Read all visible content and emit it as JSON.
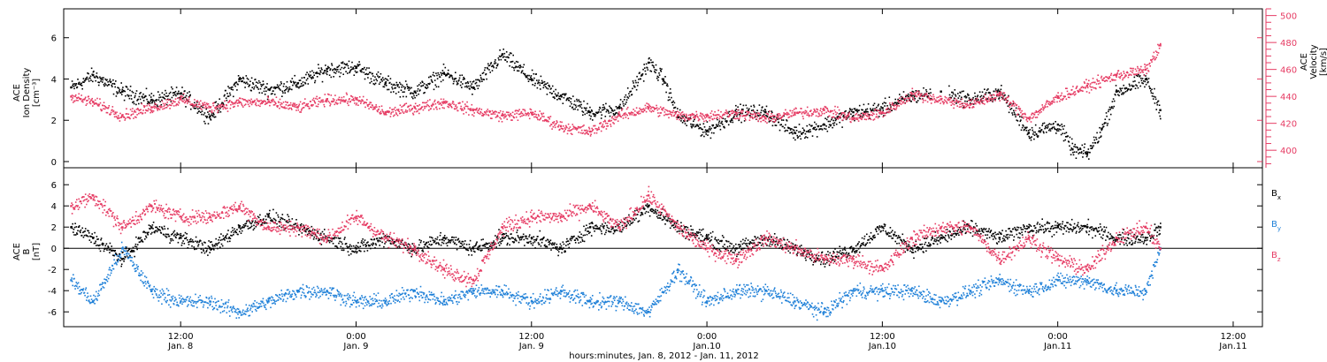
{
  "chart_data": {
    "type": "scatter",
    "xlabel": "hours:minutes, Jan.  8, 2012 - Jan. 11, 2012",
    "x_ticks": [
      {
        "t": 12,
        "time": "12:00",
        "date": "Jan. 8"
      },
      {
        "t": 24,
        "time": "0:00",
        "date": "Jan. 9"
      },
      {
        "t": 36,
        "time": "12:00",
        "date": "Jan. 9"
      },
      {
        "t": 48,
        "time": "0:00",
        "date": "Jan.10"
      },
      {
        "t": 60,
        "time": "12:00",
        "date": "Jan.10"
      },
      {
        "t": 72,
        "time": "0:00",
        "date": "Jan.11"
      },
      {
        "t": 84,
        "time": "12:00",
        "date": "Jan.11"
      }
    ],
    "xlim_hours": [
      4,
      86
    ],
    "panels": [
      {
        "id": "density-velocity",
        "ylabel_lines": [
          "ACE",
          "Ion Density",
          "[cm⁻³]"
        ],
        "ylim": [
          -0.3,
          7.4
        ],
        "yticks": [
          0,
          2,
          4,
          6
        ],
        "right_ylabel_lines": [
          "ACE",
          "Velocity",
          "[km/s]"
        ],
        "right_ylim": [
          387,
          505
        ],
        "right_yticks": [
          400,
          420,
          440,
          460,
          480,
          500
        ],
        "series": [
          {
            "axis": "left",
            "color": "#000000",
            "points": [
              [
                4.5,
                3.6
              ],
              [
                6,
                4.2
              ],
              [
                8,
                3.4
              ],
              [
                10,
                3.0
              ],
              [
                12,
                3.3
              ],
              [
                14,
                2.2
              ],
              [
                16,
                4.0
              ],
              [
                18,
                3.5
              ],
              [
                20,
                3.8
              ],
              [
                22,
                4.5
              ],
              [
                24,
                4.6
              ],
              [
                26,
                3.8
              ],
              [
                28,
                3.4
              ],
              [
                30,
                4.3
              ],
              [
                32,
                3.6
              ],
              [
                34,
                5.2
              ],
              [
                36,
                4.0
              ],
              [
                38,
                3.2
              ],
              [
                40,
                2.4
              ],
              [
                42,
                2.6
              ],
              [
                44,
                4.8
              ],
              [
                45,
                4.0
              ],
              [
                46,
                2.2
              ],
              [
                48,
                1.5
              ],
              [
                50,
                2.4
              ],
              [
                52,
                2.4
              ],
              [
                54,
                1.4
              ],
              [
                56,
                1.8
              ],
              [
                58,
                2.4
              ],
              [
                60,
                2.6
              ],
              [
                62,
                3.2
              ],
              [
                64,
                3.4
              ],
              [
                66,
                3.0
              ],
              [
                68,
                3.4
              ],
              [
                70,
                1.4
              ],
              [
                72,
                1.8
              ],
              [
                73,
                0.6
              ],
              [
                74,
                0.4
              ],
              [
                75,
                1.6
              ],
              [
                76,
                3.4
              ],
              [
                78,
                4.0
              ],
              [
                79,
                2.5
              ]
            ]
          },
          {
            "axis": "right",
            "color": "#e63c64",
            "points": [
              [
                4.5,
                440
              ],
              [
                6,
                436
              ],
              [
                8,
                426
              ],
              [
                10,
                432
              ],
              [
                12,
                438
              ],
              [
                14,
                432
              ],
              [
                16,
                436
              ],
              [
                18,
                436
              ],
              [
                20,
                432
              ],
              [
                22,
                438
              ],
              [
                24,
                438
              ],
              [
                26,
                428
              ],
              [
                28,
                432
              ],
              [
                30,
                436
              ],
              [
                32,
                430
              ],
              [
                34,
                426
              ],
              [
                36,
                428
              ],
              [
                38,
                418
              ],
              [
                40,
                414
              ],
              [
                42,
                426
              ],
              [
                44,
                432
              ],
              [
                46,
                426
              ],
              [
                48,
                426
              ],
              [
                50,
                428
              ],
              [
                52,
                424
              ],
              [
                54,
                428
              ],
              [
                56,
                430
              ],
              [
                58,
                424
              ],
              [
                60,
                428
              ],
              [
                62,
                442
              ],
              [
                64,
                438
              ],
              [
                66,
                434
              ],
              [
                68,
                442
              ],
              [
                70,
                424
              ],
              [
                72,
                440
              ],
              [
                74,
                448
              ],
              [
                76,
                456
              ],
              [
                78,
                460
              ],
              [
                79,
                478
              ]
            ]
          }
        ]
      },
      {
        "id": "magnetic-field",
        "ylabel_lines": [
          "ACE",
          "B",
          "[nT]"
        ],
        "ylim": [
          -7.4,
          7.6
        ],
        "yticks": [
          -6,
          -4,
          -2,
          0,
          2,
          4,
          6
        ],
        "zero_line": true,
        "series": [
          {
            "name": "Bx",
            "label": "B",
            "sub": "x",
            "color": "#000000",
            "points": [
              [
                4.5,
                2
              ],
              [
                6,
                1
              ],
              [
                8,
                -1
              ],
              [
                10,
                2
              ],
              [
                12,
                1
              ],
              [
                14,
                0
              ],
              [
                16,
                2
              ],
              [
                18,
                3
              ],
              [
                20,
                2
              ],
              [
                22,
                1
              ],
              [
                24,
                0
              ],
              [
                26,
                1
              ],
              [
                28,
                0
              ],
              [
                30,
                1
              ],
              [
                32,
                0
              ],
              [
                34,
                1
              ],
              [
                36,
                1
              ],
              [
                38,
                0
              ],
              [
                40,
                2
              ],
              [
                42,
                2
              ],
              [
                44,
                4
              ],
              [
                46,
                2
              ],
              [
                48,
                1
              ],
              [
                50,
                0
              ],
              [
                52,
                1
              ],
              [
                54,
                0
              ],
              [
                56,
                -1
              ],
              [
                58,
                0
              ],
              [
                60,
                2
              ],
              [
                62,
                0
              ],
              [
                64,
                1
              ],
              [
                66,
                2
              ],
              [
                68,
                1
              ],
              [
                70,
                2
              ],
              [
                72,
                2
              ],
              [
                74,
                2
              ],
              [
                76,
                1
              ],
              [
                78,
                1
              ],
              [
                79,
                2
              ]
            ]
          },
          {
            "name": "By",
            "label": "B",
            "sub": "y",
            "color": "#1f80d8",
            "points": [
              [
                4.5,
                -3
              ],
              [
                6,
                -5
              ],
              [
                8,
                0
              ],
              [
                10,
                -4
              ],
              [
                12,
                -5
              ],
              [
                14,
                -5
              ],
              [
                16,
                -6
              ],
              [
                18,
                -5
              ],
              [
                20,
                -4
              ],
              [
                22,
                -4
              ],
              [
                24,
                -5
              ],
              [
                26,
                -5
              ],
              [
                28,
                -4
              ],
              [
                30,
                -5
              ],
              [
                32,
                -4
              ],
              [
                34,
                -4
              ],
              [
                36,
                -5
              ],
              [
                38,
                -4
              ],
              [
                40,
                -5
              ],
              [
                42,
                -5
              ],
              [
                44,
                -6
              ],
              [
                46,
                -2
              ],
              [
                48,
                -5
              ],
              [
                50,
                -4
              ],
              [
                52,
                -4
              ],
              [
                54,
                -5
              ],
              [
                56,
                -6
              ],
              [
                58,
                -4
              ],
              [
                60,
                -4
              ],
              [
                62,
                -4
              ],
              [
                64,
                -5
              ],
              [
                66,
                -4
              ],
              [
                68,
                -3
              ],
              [
                70,
                -4
              ],
              [
                72,
                -3
              ],
              [
                74,
                -3
              ],
              [
                76,
                -4
              ],
              [
                78,
                -4
              ],
              [
                79,
                0
              ]
            ]
          },
          {
            "name": "Bz",
            "label": "B",
            "sub": "z",
            "color": "#e63c64",
            "points": [
              [
                4.5,
                4
              ],
              [
                6,
                5
              ],
              [
                8,
                2
              ],
              [
                10,
                4
              ],
              [
                12,
                3
              ],
              [
                14,
                3
              ],
              [
                16,
                4
              ],
              [
                18,
                2
              ],
              [
                20,
                2
              ],
              [
                22,
                1
              ],
              [
                24,
                3
              ],
              [
                26,
                1
              ],
              [
                28,
                0
              ],
              [
                30,
                -2
              ],
              [
                32,
                -3
              ],
              [
                34,
                2
              ],
              [
                36,
                3
              ],
              [
                38,
                3
              ],
              [
                40,
                4
              ],
              [
                42,
                2
              ],
              [
                44,
                5
              ],
              [
                46,
                2
              ],
              [
                48,
                0
              ],
              [
                50,
                -1
              ],
              [
                52,
                1
              ],
              [
                54,
                0
              ],
              [
                56,
                -1
              ],
              [
                58,
                -1
              ],
              [
                60,
                -2
              ],
              [
                62,
                1
              ],
              [
                64,
                2
              ],
              [
                66,
                2
              ],
              [
                68,
                -1
              ],
              [
                70,
                1
              ],
              [
                72,
                -1
              ],
              [
                74,
                -2
              ],
              [
                76,
                1
              ],
              [
                78,
                2
              ],
              [
                79,
                0
              ]
            ]
          }
        ]
      }
    ]
  }
}
